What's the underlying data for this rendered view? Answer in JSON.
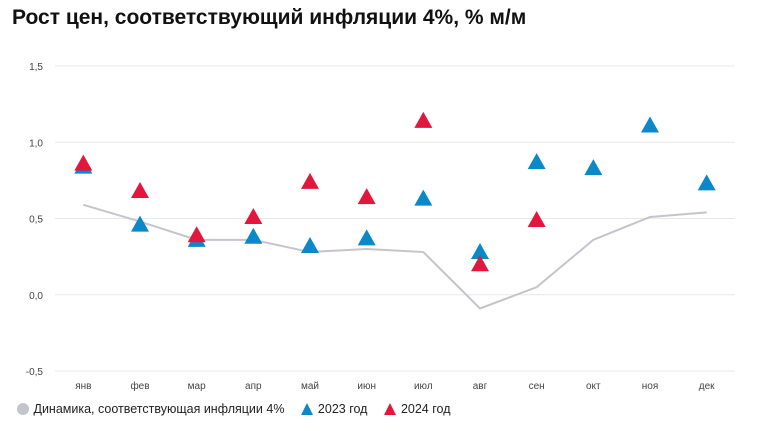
{
  "chart_data": {
    "type": "scatter",
    "title": "Рост цен, соответствующий инфляции 4%, % м/м",
    "categories": [
      "янв",
      "фев",
      "мар",
      "апр",
      "май",
      "июн",
      "июл",
      "авг",
      "сен",
      "окт",
      "ноя",
      "дек"
    ],
    "ylim": [
      -0.5,
      1.5
    ],
    "yticks": [
      "1,5",
      "1,0",
      "0,5",
      "0,0",
      "-0,5"
    ],
    "ytick_values": [
      1.5,
      1.0,
      0.5,
      0.0,
      -0.5
    ],
    "grid": true,
    "legend_position": "bottom-left",
    "series": [
      {
        "name": "Динамика, соответствующая инфляции 4%",
        "kind": "line",
        "color": "#c4c4cc",
        "values": [
          0.59,
          0.48,
          0.36,
          0.36,
          0.28,
          0.3,
          0.28,
          -0.09,
          0.05,
          0.36,
          0.51,
          0.54
        ]
      },
      {
        "name": "2023 год",
        "kind": "triangle",
        "color": "#0a88c8",
        "values": [
          0.84,
          0.46,
          0.36,
          0.38,
          0.32,
          0.37,
          0.63,
          0.28,
          0.87,
          0.83,
          1.11,
          0.73
        ]
      },
      {
        "name": "2024 год",
        "kind": "triangle",
        "color": "#e3173e",
        "values": [
          0.86,
          0.68,
          0.39,
          0.51,
          0.74,
          0.64,
          1.14,
          0.2,
          0.49,
          null,
          null,
          null
        ]
      }
    ]
  }
}
